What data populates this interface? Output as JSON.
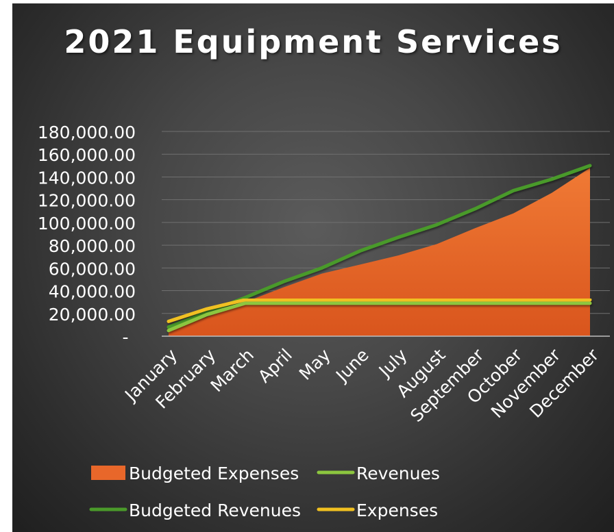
{
  "chart_data": {
    "type": "area",
    "title": "2021 Equipment Services",
    "xlabel": "",
    "ylabel": "",
    "categories": [
      "January",
      "February",
      "March",
      "April",
      "May",
      "June",
      "July",
      "August",
      "September",
      "October",
      "November",
      "December"
    ],
    "ylim": [
      0,
      180000
    ],
    "yticks": [
      "-",
      "20,000.00",
      "40,000.00",
      "60,000.00",
      "80,000.00",
      "100,000.00",
      "120,000.00",
      "140,000.00",
      "160,000.00",
      "180,000.00"
    ],
    "grid": true,
    "legend_position": "bottom",
    "series": [
      {
        "name": "Budgeted Expenses",
        "kind": "area",
        "color": "#e8672a",
        "values": [
          5000,
          17000,
          30000,
          43000,
          55000,
          63000,
          71000,
          81000,
          95000,
          108000,
          126000,
          148000
        ]
      },
      {
        "name": "Revenues",
        "kind": "line",
        "color": "#8cc63f",
        "values": [
          5000,
          19000,
          29000,
          29000,
          29000,
          29000,
          29000,
          29000,
          29000,
          29000,
          29000,
          29000
        ]
      },
      {
        "name": "Budgeted Revenues",
        "kind": "line",
        "color": "#4a9a2a",
        "values": [
          8000,
          21000,
          34000,
          48000,
          60000,
          75000,
          87000,
          98000,
          112000,
          128000,
          138000,
          150000
        ]
      },
      {
        "name": "Expenses",
        "kind": "line",
        "color": "#f0c020",
        "values": [
          13000,
          24000,
          32000,
          32000,
          32000,
          32000,
          32000,
          32000,
          32000,
          32000,
          32000,
          32000
        ]
      }
    ]
  }
}
